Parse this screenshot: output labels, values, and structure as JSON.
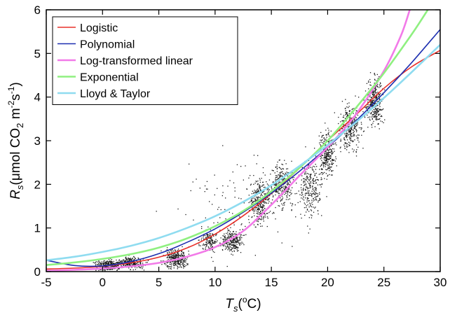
{
  "chart_data": {
    "type": "scatter",
    "x_axis": {
      "variable": "T",
      "subscript": "s",
      "unit_prefix": "(",
      "unit_sup": "o",
      "unit_suffix": "C)",
      "range": [
        -5,
        30
      ],
      "ticks": [
        -5,
        0,
        5,
        10,
        15,
        20,
        25,
        30
      ]
    },
    "y_axis": {
      "variable": "R",
      "subscript": "s",
      "unit_open": "(μmol CO",
      "unit_sub": "2",
      "unit_mid": " m",
      "unit_sup1": "-2",
      "unit_s": "s",
      "unit_sup2": "-1",
      "unit_close": ")",
      "range": [
        0,
        6
      ],
      "ticks": [
        0,
        1,
        2,
        3,
        4,
        5,
        6
      ]
    },
    "grid": false,
    "legend_position": "top-left",
    "series": [
      {
        "name": "Logistic",
        "color": "#e8302a",
        "x": [
          -5,
          -2.5,
          0,
          2.5,
          5,
          7.5,
          10,
          12.5,
          15,
          17.5,
          20,
          22.5,
          25,
          27.5,
          30
        ],
        "y": [
          0.06,
          0.08,
          0.12,
          0.2,
          0.33,
          0.54,
          0.86,
          1.28,
          1.79,
          2.37,
          3.0,
          3.59,
          4.2,
          4.7,
          5.07
        ]
      },
      {
        "name": "Polynomial",
        "color": "#1d2fb0",
        "x": [
          -5,
          -2.5,
          0,
          2.5,
          5,
          7.5,
          10,
          12.5,
          15,
          17.5,
          20,
          22.5,
          25,
          27.5,
          30
        ],
        "y": [
          0.26,
          0.14,
          0.13,
          0.23,
          0.41,
          0.67,
          0.98,
          1.36,
          1.8,
          2.3,
          2.85,
          3.45,
          4.1,
          4.8,
          5.55
        ]
      },
      {
        "name": "Log-transformed linear",
        "color": "#f27ae8",
        "x": [
          -5,
          -2.5,
          0,
          2.5,
          5,
          7.5,
          10,
          12.5,
          15,
          17.5,
          20,
          22.5,
          25,
          26.5,
          27.3
        ],
        "y": [
          0.02,
          0.04,
          0.07,
          0.12,
          0.2,
          0.34,
          0.56,
          0.93,
          1.53,
          2.2,
          2.85,
          3.6,
          4.6,
          5.4,
          6.0
        ]
      },
      {
        "name": "Exponential",
        "color": "#8ff080",
        "x": [
          -5,
          -2.5,
          0,
          2.5,
          5,
          7.5,
          10,
          12.5,
          15,
          17.5,
          20,
          22.5,
          25,
          27.5,
          28.9
        ],
        "y": [
          0.15,
          0.21,
          0.29,
          0.4,
          0.55,
          0.76,
          1.04,
          1.39,
          1.84,
          2.38,
          3.0,
          3.75,
          4.55,
          5.45,
          6.0
        ]
      },
      {
        "name": "Lloyd & Taylor",
        "color": "#8fdcf0",
        "x": [
          -5,
          -2.5,
          0,
          2.5,
          5,
          7.5,
          10,
          12.5,
          15,
          17.5,
          20,
          22.5,
          25,
          27.5,
          30
        ],
        "y": [
          0.26,
          0.34,
          0.45,
          0.59,
          0.77,
          1.0,
          1.27,
          1.6,
          1.98,
          2.42,
          2.9,
          3.42,
          3.98,
          4.58,
          5.2
        ]
      }
    ],
    "scatter_clusters": [
      {
        "x_center": 0.5,
        "x_spread": 1.4,
        "y_center": 0.15,
        "y_spread": 0.12,
        "count": 260
      },
      {
        "x_center": 2.5,
        "x_spread": 1.4,
        "y_center": 0.2,
        "y_spread": 0.13,
        "count": 260
      },
      {
        "x_center": 6.5,
        "x_spread": 1.3,
        "y_center": 0.3,
        "y_spread": 0.22,
        "count": 300
      },
      {
        "x_center": 9.5,
        "x_spread": 0.9,
        "y_center": 0.7,
        "y_spread": 0.22,
        "count": 140
      },
      {
        "x_center": 11.5,
        "x_spread": 1.2,
        "y_center": 0.7,
        "y_spread": 0.25,
        "count": 260
      },
      {
        "x_center": 14.0,
        "x_spread": 1.2,
        "y_center": 1.6,
        "y_spread": 0.5,
        "count": 300
      },
      {
        "x_center": 16.0,
        "x_spread": 1.3,
        "y_center": 2.0,
        "y_spread": 0.55,
        "count": 280
      },
      {
        "x_center": 18.5,
        "x_spread": 1.3,
        "y_center": 1.9,
        "y_spread": 0.7,
        "count": 260
      },
      {
        "x_center": 20.0,
        "x_spread": 0.9,
        "y_center": 2.7,
        "y_spread": 0.55,
        "count": 300
      },
      {
        "x_center": 22.0,
        "x_spread": 1.2,
        "y_center": 3.3,
        "y_spread": 0.5,
        "count": 320
      },
      {
        "x_center": 24.2,
        "x_spread": 1.0,
        "y_center": 3.9,
        "y_spread": 0.55,
        "count": 340
      },
      {
        "x_center": 12.0,
        "x_spread": 8.0,
        "y_center": 1.5,
        "y_spread": 1.2,
        "count": 120
      }
    ]
  }
}
